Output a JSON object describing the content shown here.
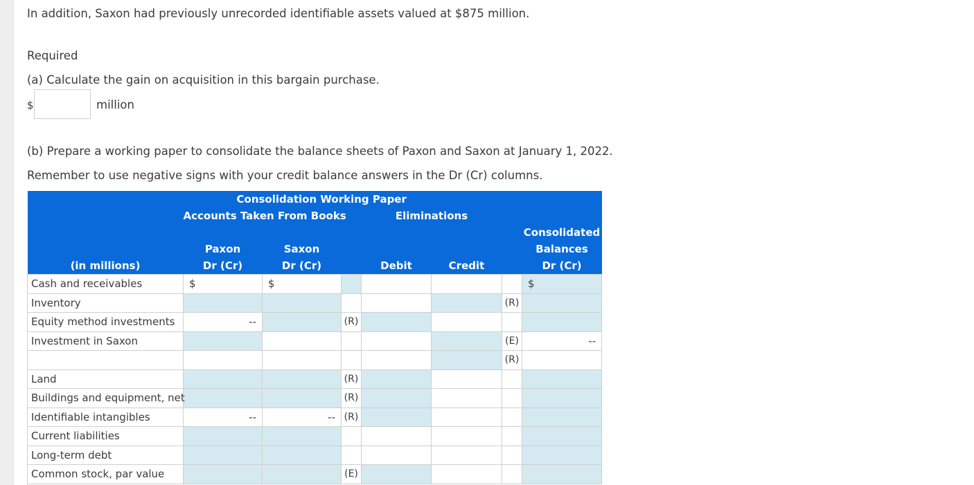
{
  "intro": "In addition, Saxon had previously unrecorded identifiable assets valued at $875 million.",
  "required_label": "Required",
  "part_a": {
    "question": "(a) Calculate the gain on acquisition in this bargain purchase.",
    "currency": "$",
    "answer_value": "",
    "unit": "million"
  },
  "part_b": {
    "question": "(b) Prepare a working paper to consolidate the balance sheets of Paxon and Saxon at January 1, 2022.",
    "instruction": "Remember to use negative signs with your credit balance answers in the Dr (Cr) columns."
  },
  "table": {
    "title": "Consolidation Working Paper",
    "group_books": "Accounts Taken From Books",
    "group_elims": "Eliminations",
    "consolidated_1": "Consolidated",
    "consolidated_2": "Balances",
    "consolidated_3": "Dr (Cr)",
    "col_label": "(in millions)",
    "paxon_1": "Paxon",
    "paxon_2": "Dr (Cr)",
    "saxon_1": "Saxon",
    "saxon_2": "Dr (Cr)",
    "debit": "Debit",
    "credit": "Credit",
    "rows": [
      {
        "label": "Cash and receivables",
        "paxon": "$",
        "saxon": "$",
        "dcode": "",
        "ccode": "",
        "cons": "$"
      },
      {
        "label": "Inventory",
        "paxon": "",
        "saxon": "",
        "dcode": "",
        "ccode": "(R)",
        "cons": ""
      },
      {
        "label": "Equity method investments",
        "paxon": "--",
        "saxon": "",
        "dcode": "(R)",
        "ccode": "",
        "cons": ""
      },
      {
        "label": "Investment in Saxon",
        "paxon": "",
        "saxon": "",
        "dcode": "",
        "ccode": "(E)",
        "cons": "--"
      },
      {
        "label": "",
        "paxon": "",
        "saxon": "",
        "dcode": "",
        "ccode": "(R)",
        "cons": ""
      },
      {
        "label": "Land",
        "paxon": "",
        "saxon": "",
        "dcode": "(R)",
        "ccode": "",
        "cons": ""
      },
      {
        "label": "Buildings and equipment, net",
        "paxon": "",
        "saxon": "",
        "dcode": "(R)",
        "ccode": "",
        "cons": ""
      },
      {
        "label": "Identifiable intangibles",
        "paxon": "--",
        "saxon": "--",
        "dcode": "(R)",
        "ccode": "",
        "cons": ""
      },
      {
        "label": "Current liabilities",
        "paxon": "",
        "saxon": "",
        "dcode": "",
        "ccode": "",
        "cons": ""
      },
      {
        "label": "Long-term debt",
        "paxon": "",
        "saxon": "",
        "dcode": "",
        "ccode": "",
        "cons": ""
      },
      {
        "label": "Common stock, par value",
        "paxon": "",
        "saxon": "",
        "dcode": "(E)",
        "ccode": "",
        "cons": ""
      }
    ]
  }
}
